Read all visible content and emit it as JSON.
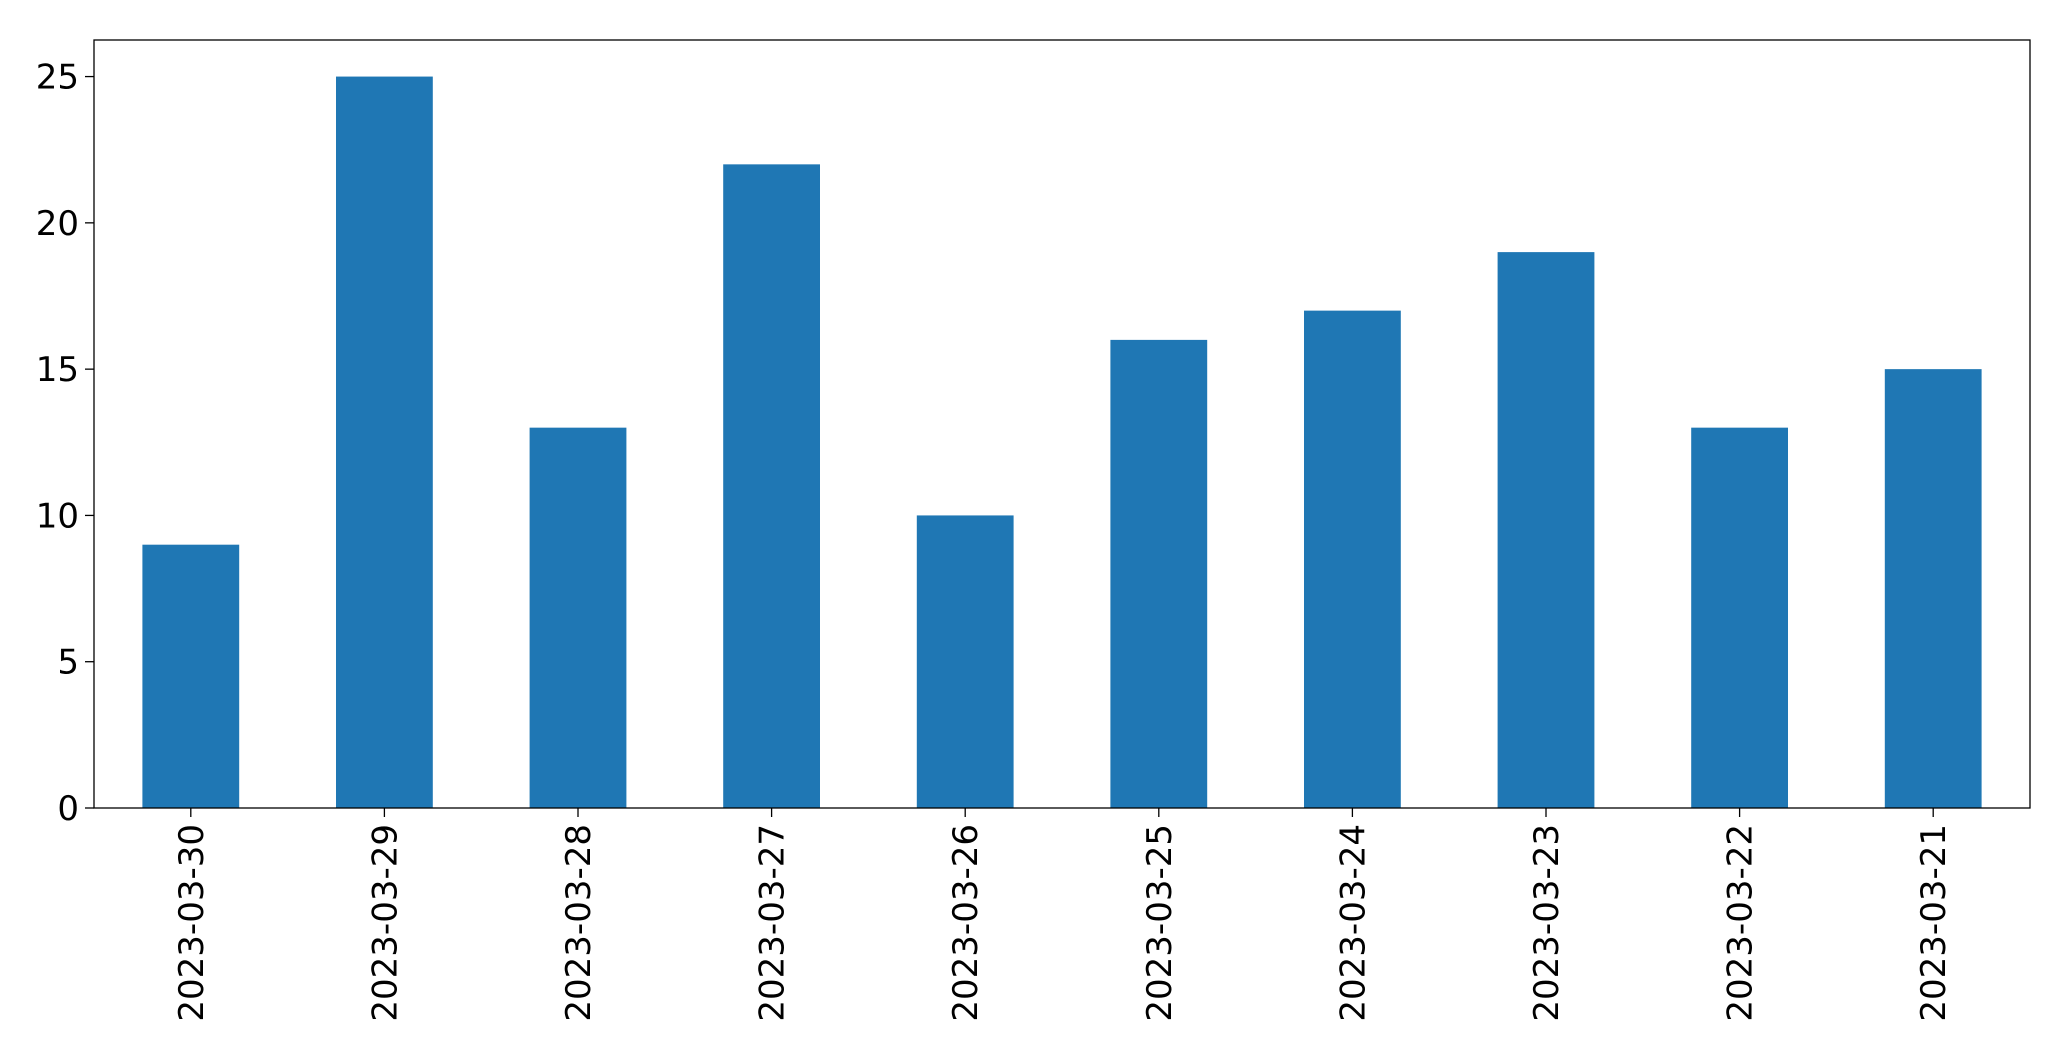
{
  "chart_data": {
    "type": "bar",
    "categories": [
      "2023-03-30",
      "2023-03-29",
      "2023-03-28",
      "2023-03-27",
      "2023-03-26",
      "2023-03-25",
      "2023-03-24",
      "2023-03-23",
      "2023-03-22",
      "2023-03-21"
    ],
    "values": [
      9,
      25,
      13,
      22,
      10,
      16,
      17,
      19,
      13,
      15
    ],
    "color": "#1f77b4",
    "ylim": [
      0,
      26.25
    ],
    "yticks": [
      0,
      5,
      10,
      15,
      20,
      25
    ],
    "grid": false
  }
}
